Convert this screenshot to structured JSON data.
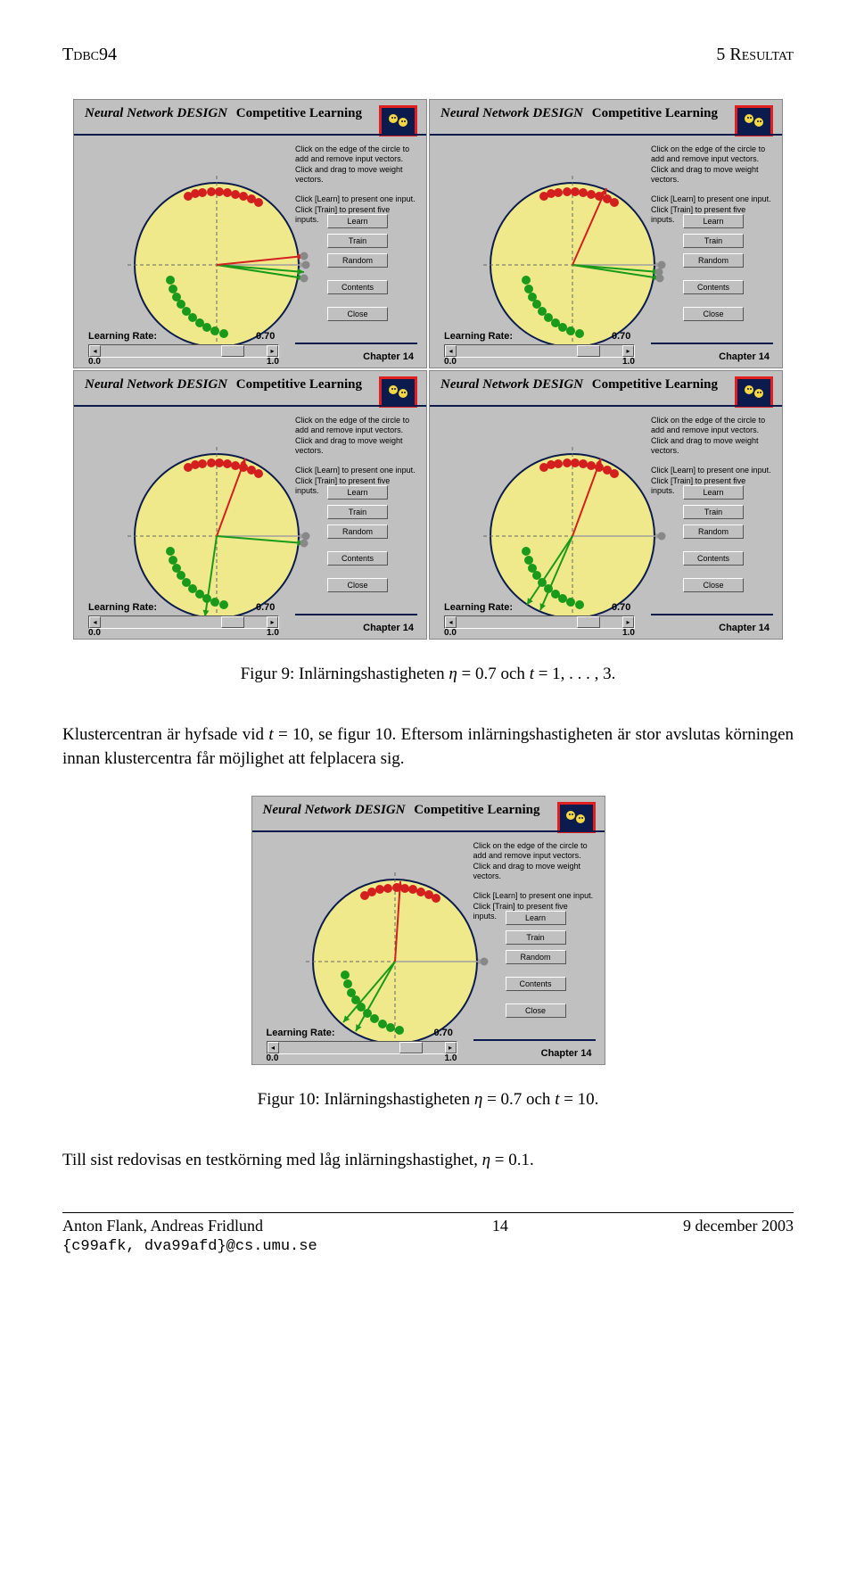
{
  "header": {
    "left": "Tdbc94",
    "right": "5   Resultat"
  },
  "panel_common": {
    "title_left": "Neural Network DESIGN",
    "title_right": "Competitive Learning",
    "info1": "Click on the edge of the circle to add and remove input vectors. Click and drag to move weight vectors.",
    "info2": "Click [Learn] to present one input. Click [Train] to present five inputs.",
    "buttons": [
      "Learn",
      "Train",
      "Random",
      "Contents",
      "Close"
    ],
    "lr_label": "Learning Rate:",
    "lr_value": "0.70",
    "slider_min": "0.0",
    "slider_max": "1.0",
    "chapter": "Chapter 14",
    "circle_fill": "#efe98b",
    "circle_stroke": "#0b1b4d",
    "dot_red": "#d41f1f",
    "dot_green": "#1a9a1a",
    "dot_grey": "#888888",
    "grey_line": "#a0a0a0",
    "red_line": "#d41f1f",
    "green_line": "#1a9a1a"
  },
  "panels": [
    {
      "red_dots": [
        [
          128,
          108
        ],
        [
          136,
          105
        ],
        [
          144,
          104
        ],
        [
          154,
          103
        ],
        [
          163,
          103
        ],
        [
          172,
          104
        ],
        [
          181,
          106
        ],
        [
          190,
          108
        ],
        [
          199,
          111
        ],
        [
          207,
          115
        ]
      ],
      "green_dots": [
        [
          108,
          202
        ],
        [
          111,
          212
        ],
        [
          115,
          221
        ],
        [
          120,
          229
        ],
        [
          126,
          237
        ],
        [
          133,
          244
        ],
        [
          141,
          250
        ],
        [
          149,
          255
        ],
        [
          158,
          259
        ],
        [
          168,
          262
        ]
      ],
      "grey_line": [
        [
          160,
          185
        ],
        [
          260,
          185
        ]
      ],
      "red_line": [
        [
          160,
          185
        ],
        [
          258,
          175
        ]
      ],
      "green1": [
        [
          160,
          185
        ],
        [
          258,
          200
        ]
      ],
      "green2": [
        [
          160,
          185
        ],
        [
          258,
          193
        ]
      ],
      "grey_dots": [
        [
          260,
          185
        ],
        [
          258,
          175
        ],
        [
          258,
          200
        ]
      ]
    },
    {
      "red_dots": [
        [
          128,
          108
        ],
        [
          136,
          105
        ],
        [
          144,
          104
        ],
        [
          154,
          103
        ],
        [
          163,
          103
        ],
        [
          172,
          104
        ],
        [
          181,
          106
        ],
        [
          190,
          108
        ],
        [
          199,
          111
        ],
        [
          207,
          115
        ]
      ],
      "green_dots": [
        [
          108,
          202
        ],
        [
          111,
          212
        ],
        [
          115,
          221
        ],
        [
          120,
          229
        ],
        [
          126,
          237
        ],
        [
          133,
          244
        ],
        [
          141,
          250
        ],
        [
          149,
          255
        ],
        [
          158,
          259
        ],
        [
          168,
          262
        ]
      ],
      "grey_line": [
        [
          160,
          185
        ],
        [
          260,
          185
        ]
      ],
      "red_line": [
        [
          160,
          185
        ],
        [
          198,
          99
        ]
      ],
      "green1": [
        [
          160,
          185
        ],
        [
          258,
          200
        ]
      ],
      "green2": [
        [
          160,
          185
        ],
        [
          257,
          193
        ]
      ],
      "grey_dots": [
        [
          260,
          185
        ],
        [
          258,
          200
        ],
        [
          257,
          193
        ]
      ]
    },
    {
      "red_dots": [
        [
          128,
          108
        ],
        [
          136,
          105
        ],
        [
          144,
          104
        ],
        [
          154,
          103
        ],
        [
          163,
          103
        ],
        [
          172,
          104
        ],
        [
          181,
          106
        ],
        [
          190,
          108
        ],
        [
          199,
          111
        ],
        [
          207,
          115
        ]
      ],
      "green_dots": [
        [
          108,
          202
        ],
        [
          111,
          212
        ],
        [
          115,
          221
        ],
        [
          120,
          229
        ],
        [
          126,
          237
        ],
        [
          133,
          244
        ],
        [
          141,
          250
        ],
        [
          149,
          255
        ],
        [
          158,
          259
        ],
        [
          168,
          262
        ]
      ],
      "grey_line": [
        [
          160,
          185
        ],
        [
          260,
          185
        ]
      ],
      "red_line": [
        [
          160,
          185
        ],
        [
          192,
          98
        ]
      ],
      "green1": [
        [
          160,
          185
        ],
        [
          147,
          275
        ]
      ],
      "green2": [
        [
          160,
          185
        ],
        [
          258,
          193
        ]
      ],
      "grey_dots": [
        [
          260,
          185
        ],
        [
          258,
          193
        ]
      ]
    },
    {
      "red_dots": [
        [
          128,
          108
        ],
        [
          136,
          105
        ],
        [
          144,
          104
        ],
        [
          154,
          103
        ],
        [
          163,
          103
        ],
        [
          172,
          104
        ],
        [
          181,
          106
        ],
        [
          190,
          108
        ],
        [
          199,
          111
        ],
        [
          207,
          115
        ]
      ],
      "green_dots": [
        [
          108,
          202
        ],
        [
          111,
          212
        ],
        [
          115,
          221
        ],
        [
          120,
          229
        ],
        [
          126,
          237
        ],
        [
          133,
          244
        ],
        [
          141,
          250
        ],
        [
          149,
          255
        ],
        [
          158,
          259
        ],
        [
          168,
          262
        ]
      ],
      "grey_line": [
        [
          160,
          185
        ],
        [
          260,
          185
        ]
      ],
      "red_line": [
        [
          160,
          185
        ],
        [
          192,
          98
        ]
      ],
      "green1": [
        [
          160,
          185
        ],
        [
          124,
          268
        ]
      ],
      "green2": [
        [
          160,
          185
        ],
        [
          109,
          262
        ]
      ],
      "grey_dots": [
        [
          260,
          185
        ]
      ]
    }
  ],
  "caption9": "Figur 9: Inlärningshastigheten η = 0.7 och t = 1, . . . , 3.",
  "body1": "Klustercentran är hyfsade vid t = 10, se figur 10. Eftersom inlärningshastigheten är stor avslutas körningen innan klustercentra får möjlighet att felplacera sig.",
  "panel10": {
    "red_dots": [
      [
        126,
        111
      ],
      [
        134,
        107
      ],
      [
        143,
        104
      ],
      [
        152,
        103
      ],
      [
        162,
        102
      ],
      [
        171,
        103
      ],
      [
        180,
        104
      ],
      [
        189,
        107
      ],
      [
        198,
        110
      ],
      [
        206,
        114
      ]
    ],
    "green_dots": [
      [
        104,
        200
      ],
      [
        107,
        210
      ],
      [
        111,
        220
      ],
      [
        116,
        228
      ],
      [
        122,
        236
      ],
      [
        129,
        243
      ],
      [
        137,
        249
      ],
      [
        146,
        255
      ],
      [
        155,
        259
      ],
      [
        165,
        262
      ]
    ],
    "grey_line": [
      [
        160,
        185
      ],
      [
        260,
        185
      ]
    ],
    "red_line": [
      [
        160,
        185
      ],
      [
        166,
        95
      ]
    ],
    "green1": [
      [
        160,
        185
      ],
      [
        116,
        263
      ]
    ],
    "green2": [
      [
        160,
        185
      ],
      [
        102,
        253
      ]
    ],
    "grey_dots": [
      [
        260,
        185
      ]
    ]
  },
  "caption10": "Figur 10: Inlärningshastigheten η = 0.7 och t = 10.",
  "body2": "Till sist redovisas en testkörning med låg inlärningshastighet, η = 0.1.",
  "footer": {
    "authors": "Anton Flank, Andreas Fridlund",
    "email": "{c99afk, dva99afd}@cs.umu.se",
    "page": "14",
    "date": "9 december 2003"
  }
}
